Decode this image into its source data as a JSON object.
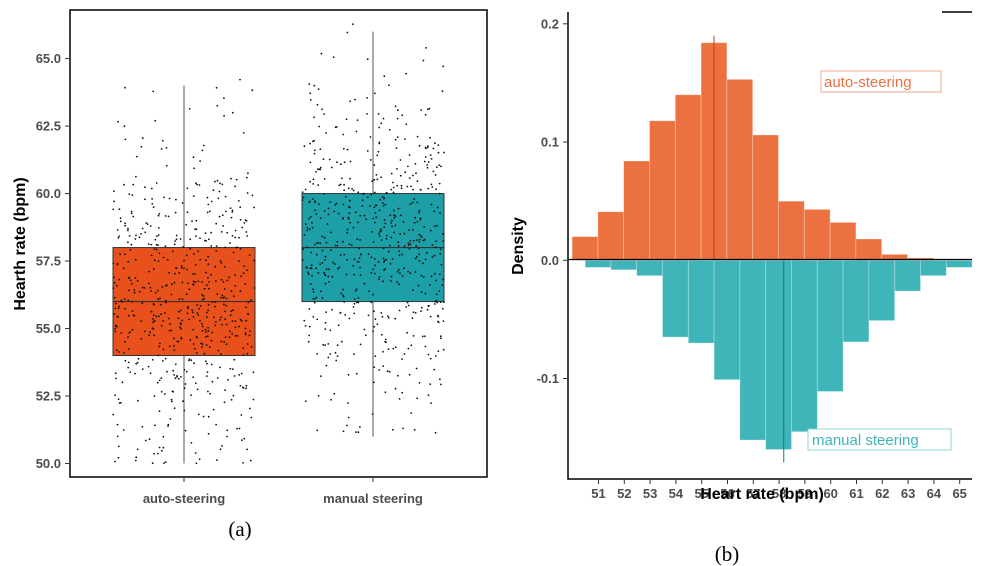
{
  "chart_data": [
    {
      "type": "box",
      "panel_caption": "(a)",
      "ylabel": "Hearth rate (bpm)",
      "xlabel": "",
      "ylim": [
        49.5,
        66.8
      ],
      "yticks": [
        "50.0",
        "52.5",
        "55.0",
        "57.5",
        "60.0",
        "62.5",
        "65.0"
      ],
      "grid": false,
      "categories": [
        "auto-steering",
        "manual steering"
      ],
      "boxes": [
        {
          "category": "auto-steering",
          "color": "#e8501c",
          "whisker_low": 50,
          "q1": 54,
          "median": 56,
          "q3": 58,
          "whisker_high": 64
        },
        {
          "category": "manual steering",
          "color": "#1c9fa6",
          "whisker_low": 51,
          "q1": 56,
          "median": 58,
          "q3": 60,
          "whisker_high": 66
        }
      ],
      "jitter_points": "approximately 600 jittered individual observations per group"
    },
    {
      "type": "bar",
      "subtype": "mirrored histogram",
      "panel_caption": "(b)",
      "xlabel": "Heart rate (bpm)",
      "ylabel": "Density",
      "categories": [
        "51",
        "52",
        "53",
        "54",
        "55",
        "56",
        "57",
        "58",
        "59",
        "60",
        "61",
        "62",
        "63",
        "64",
        "65"
      ],
      "ylim": [
        -0.185,
        0.21
      ],
      "yticks": [
        "-0.1",
        "0.0",
        "0.1",
        "0.2"
      ],
      "series": [
        {
          "name": "auto-steering",
          "color": "#ec7140",
          "values": [
            0.02,
            0.041,
            0.084,
            0.118,
            0.14,
            0.184,
            0.153,
            0.106,
            0.05,
            0.043,
            0.032,
            0.018,
            0.005,
            0.002,
            0.0
          ],
          "marker_line": 56
        },
        {
          "name": "manual steering",
          "color": "#3fb4b9",
          "values": [
            -0.006,
            -0.008,
            -0.013,
            -0.065,
            -0.07,
            -0.101,
            -0.152,
            -0.16,
            -0.145,
            -0.111,
            -0.069,
            -0.051,
            -0.026,
            -0.013,
            -0.006
          ],
          "marker_line": 58.2
        }
      ]
    }
  ]
}
